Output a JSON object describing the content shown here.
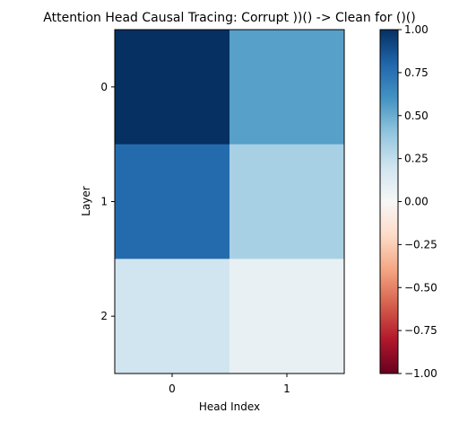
{
  "chart_data": {
    "type": "heatmap",
    "title": "Attention Head Causal Tracing: Corrupt ))() -> Clean for ()()",
    "xlabel": "Head Index",
    "ylabel": "Layer",
    "x_categories": [
      "0",
      "1"
    ],
    "y_categories": [
      "0",
      "1",
      "2"
    ],
    "values": [
      [
        1.0,
        0.55
      ],
      [
        0.78,
        0.33
      ],
      [
        0.2,
        0.08
      ]
    ],
    "colorbar": {
      "colormap": "RdBu",
      "vmin": -1.0,
      "vmax": 1.0,
      "ticks": [
        "1.00",
        "0.75",
        "0.50",
        "0.25",
        "0.00",
        "−0.25",
        "−0.50",
        "−0.75",
        "−1.00"
      ],
      "tick_values": [
        1.0,
        0.75,
        0.5,
        0.25,
        0.0,
        -0.25,
        -0.5,
        -0.75,
        -1.0
      ]
    },
    "grid": false
  }
}
